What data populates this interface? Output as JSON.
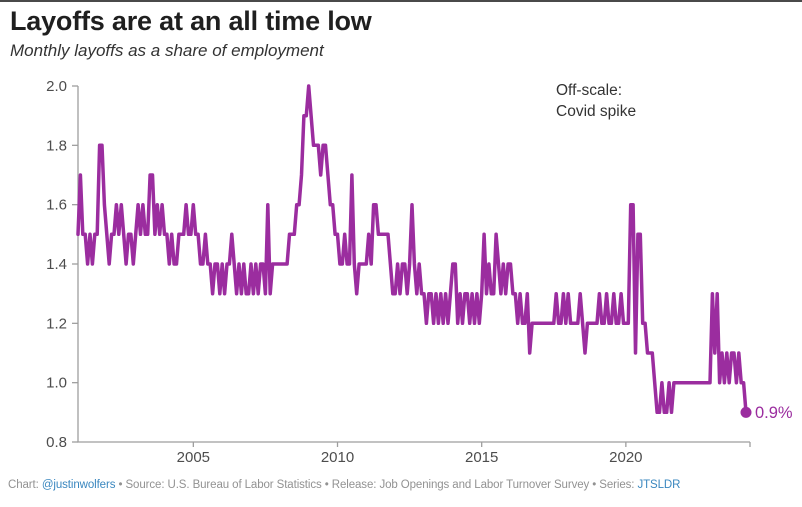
{
  "header": {
    "title": "Layoffs are at an all time low",
    "subtitle": "Monthly layoffs as a share of employment"
  },
  "annotation": {
    "line1": "Off-scale:",
    "line2": "Covid spike"
  },
  "end_label": "0.9%",
  "colors": {
    "line": "#9b2d9f",
    "accent_text": "#9b2d9f",
    "axis": "#9e9e9e",
    "tick_label": "#4d4d4d",
    "link": "#3a87bf"
  },
  "footer": {
    "segments": [
      {
        "text": "Chart: ",
        "link": false
      },
      {
        "text": "@justinwolfers",
        "link": true
      },
      {
        "text": " • Source: U.S. Bureau of Labor Statistics • Release: Job Openings and Labor Turnover Survey • Series: ",
        "link": false
      },
      {
        "text": "JTSLDR",
        "link": true
      }
    ]
  },
  "chart_data": {
    "type": "line",
    "title": "Layoffs are at an all time low",
    "subtitle": "Monthly layoffs as a share of employment",
    "frequency": "monthly",
    "start_year": 2001,
    "start_month": 1,
    "end_year": 2024,
    "end_month": 3,
    "ylim": [
      0.8,
      2.0
    ],
    "y_ticks": [
      2.0,
      1.8,
      1.6,
      1.4,
      1.2,
      1.0,
      0.8
    ],
    "x_tick_years": [
      2005,
      2010,
      2015,
      2020
    ],
    "grid": "off",
    "legend": "none",
    "annotations": [
      "Off-scale: Covid spike",
      "0.9% label at final point"
    ],
    "series": [
      {
        "name": "Monthly layoffs as a share of employment (%)",
        "values": [
          1.5,
          1.7,
          1.5,
          1.5,
          1.4,
          1.5,
          1.4,
          1.5,
          1.5,
          1.8,
          1.8,
          1.6,
          1.5,
          1.4,
          1.5,
          1.5,
          1.6,
          1.5,
          1.6,
          1.5,
          1.4,
          1.5,
          1.5,
          1.4,
          1.5,
          1.6,
          1.5,
          1.6,
          1.5,
          1.5,
          1.7,
          1.7,
          1.5,
          1.6,
          1.5,
          1.6,
          1.5,
          1.5,
          1.4,
          1.5,
          1.4,
          1.4,
          1.5,
          1.5,
          1.5,
          1.6,
          1.5,
          1.5,
          1.6,
          1.5,
          1.5,
          1.4,
          1.4,
          1.5,
          1.4,
          1.4,
          1.3,
          1.4,
          1.4,
          1.3,
          1.4,
          1.3,
          1.4,
          1.4,
          1.5,
          1.4,
          1.3,
          1.4,
          1.3,
          1.4,
          1.3,
          1.3,
          1.4,
          1.3,
          1.4,
          1.3,
          1.4,
          1.4,
          1.3,
          1.6,
          1.3,
          1.4,
          1.4,
          1.4,
          1.4,
          1.4,
          1.4,
          1.4,
          1.5,
          1.5,
          1.5,
          1.6,
          1.6,
          1.7,
          1.9,
          1.9,
          2.0,
          1.9,
          1.8,
          1.8,
          1.8,
          1.7,
          1.8,
          1.8,
          1.7,
          1.6,
          1.6,
          1.5,
          1.5,
          1.4,
          1.4,
          1.5,
          1.4,
          1.4,
          1.7,
          1.4,
          1.3,
          1.4,
          1.4,
          1.4,
          1.4,
          1.5,
          1.4,
          1.6,
          1.6,
          1.5,
          1.5,
          1.5,
          1.5,
          1.5,
          1.4,
          1.3,
          1.3,
          1.4,
          1.3,
          1.4,
          1.4,
          1.3,
          1.4,
          1.6,
          1.4,
          1.3,
          1.4,
          1.3,
          1.3,
          1.2,
          1.3,
          1.3,
          1.2,
          1.3,
          1.2,
          1.3,
          1.2,
          1.3,
          1.2,
          1.3,
          1.4,
          1.4,
          1.2,
          1.3,
          1.2,
          1.3,
          1.3,
          1.2,
          1.3,
          1.2,
          1.3,
          1.2,
          1.3,
          1.5,
          1.3,
          1.4,
          1.3,
          1.3,
          1.5,
          1.4,
          1.3,
          1.4,
          1.3,
          1.4,
          1.4,
          1.3,
          1.3,
          1.2,
          1.3,
          1.2,
          1.2,
          1.3,
          1.1,
          1.2,
          1.2,
          1.2,
          1.2,
          1.2,
          1.2,
          1.2,
          1.2,
          1.2,
          1.2,
          1.3,
          1.2,
          1.2,
          1.3,
          1.2,
          1.3,
          1.2,
          1.2,
          1.2,
          1.2,
          1.3,
          1.2,
          1.1,
          1.2,
          1.2,
          1.2,
          1.2,
          1.2,
          1.3,
          1.2,
          1.2,
          1.3,
          1.2,
          1.2,
          1.3,
          1.2,
          1.2,
          1.3,
          1.2,
          1.2,
          1.2,
          1.6,
          1.6,
          1.1,
          1.5,
          1.5,
          1.2,
          1.2,
          1.1,
          1.1,
          1.1,
          1.0,
          0.9,
          0.9,
          1.0,
          0.9,
          0.9,
          1.0,
          0.9,
          1.0,
          1.0,
          1.0,
          1.0,
          1.0,
          1.0,
          1.0,
          1.0,
          1.0,
          1.0,
          1.0,
          1.0,
          1.0,
          1.0,
          1.0,
          1.0,
          1.3,
          1.1,
          1.3,
          1.0,
          1.1,
          1.0,
          1.1,
          1.0,
          1.1,
          1.1,
          1.0,
          1.1,
          1.0,
          1.0,
          0.9
        ]
      }
    ],
    "end_point_label": "0.9%"
  }
}
